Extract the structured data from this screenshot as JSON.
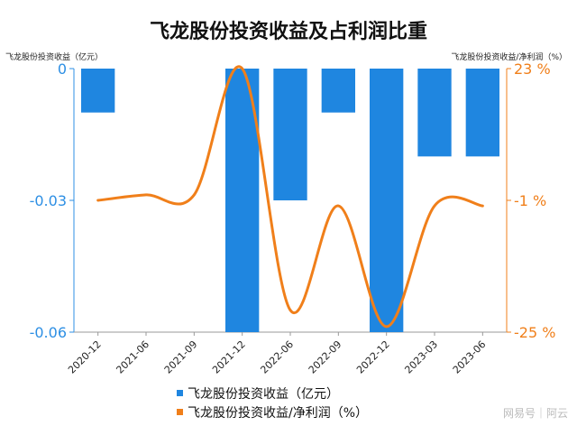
{
  "chart_data": {
    "type": "bar+line",
    "title": "飞龙股份投资收益及占利润比重",
    "left_axis_label": "飞龙股份投资收益（亿元）",
    "right_axis_label": "飞龙股份投资收益/净利润（%）",
    "left_ylim": [
      -0.06,
      0
    ],
    "right_ylim": [
      -25,
      23
    ],
    "left_ticks": [
      0,
      -0.03,
      -0.06
    ],
    "left_tick_labels": [
      "0",
      "-0.03",
      "-0.06"
    ],
    "right_ticks": [
      23,
      -1,
      -25
    ],
    "right_tick_labels": [
      "23 %",
      "-1 %",
      "-25 %"
    ],
    "categories": [
      "2020-12",
      "2021-06",
      "2021-09",
      "2021-12",
      "2022-06",
      "2022-09",
      "2022-12",
      "2023-03",
      "2023-06"
    ],
    "series": [
      {
        "name": "飞龙股份投资收益（亿元）",
        "kind": "bar",
        "axis": "left",
        "color": "#1f86e0",
        "values": [
          -0.01,
          0,
          0,
          -0.06,
          -0.03,
          -0.01,
          -0.06,
          -0.02,
          -0.02
        ]
      },
      {
        "name": "飞龙股份投资收益/净利润（%）",
        "kind": "line",
        "axis": "right",
        "color": "#f07f1a",
        "values": [
          -1,
          0,
          0,
          23,
          -21,
          -2,
          -24,
          -2,
          -2
        ]
      }
    ],
    "legend_position": "bottom-center",
    "grid": false
  },
  "watermark": "网易号｜阿云"
}
